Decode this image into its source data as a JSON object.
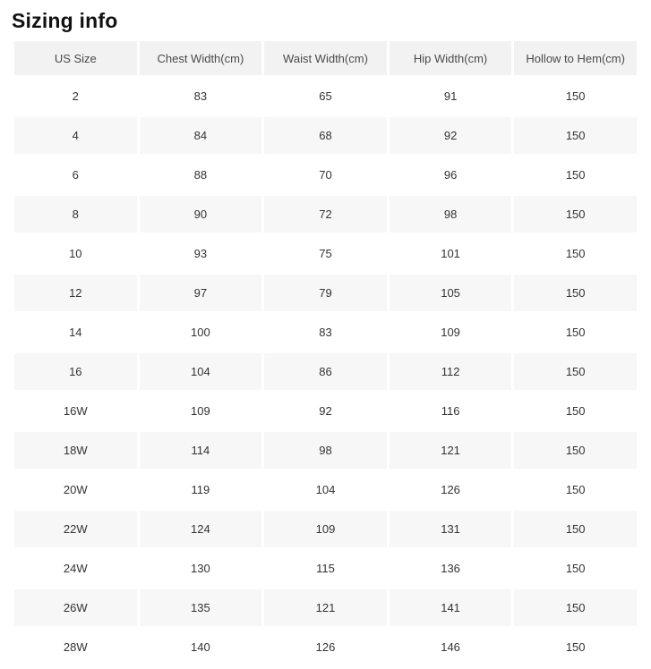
{
  "page": {
    "title": "Sizing info"
  },
  "colors": {
    "header_bg": "#f2f2f2",
    "stripe_bg": "#f7f7f7",
    "cell_text": "#333333",
    "header_text": "#4a4a4a",
    "title_text": "#111111",
    "background": "#ffffff"
  },
  "table": {
    "columns": [
      "US Size",
      "Chest Width(cm)",
      "Waist Width(cm)",
      "Hip Width(cm)",
      "Hollow to Hem(cm)"
    ],
    "rows": [
      [
        "2",
        "83",
        "65",
        "91",
        "150"
      ],
      [
        "4",
        "84",
        "68",
        "92",
        "150"
      ],
      [
        "6",
        "88",
        "70",
        "96",
        "150"
      ],
      [
        "8",
        "90",
        "72",
        "98",
        "150"
      ],
      [
        "10",
        "93",
        "75",
        "101",
        "150"
      ],
      [
        "12",
        "97",
        "79",
        "105",
        "150"
      ],
      [
        "14",
        "100",
        "83",
        "109",
        "150"
      ],
      [
        "16",
        "104",
        "86",
        "112",
        "150"
      ],
      [
        "16W",
        "109",
        "92",
        "116",
        "150"
      ],
      [
        "18W",
        "114",
        "98",
        "121",
        "150"
      ],
      [
        "20W",
        "119",
        "104",
        "126",
        "150"
      ],
      [
        "22W",
        "124",
        "109",
        "131",
        "150"
      ],
      [
        "24W",
        "130",
        "115",
        "136",
        "150"
      ],
      [
        "26W",
        "135",
        "121",
        "141",
        "150"
      ],
      [
        "28W",
        "140",
        "126",
        "146",
        "150"
      ]
    ]
  }
}
